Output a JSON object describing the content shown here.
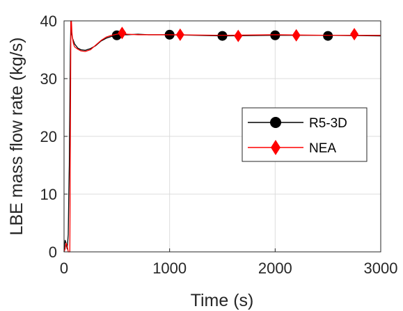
{
  "chart_data": {
    "type": "line",
    "title": "",
    "xlabel": "Time (s)",
    "ylabel": "LBE mass flow rate (kg/s)",
    "xlim": [
      0,
      3000
    ],
    "ylim": [
      0,
      40
    ],
    "xticks": [
      0,
      1000,
      2000,
      3000
    ],
    "yticks": [
      0,
      10,
      20,
      30,
      40
    ],
    "grid": true,
    "legend": "center-right",
    "series": [
      {
        "name": "R5-3D",
        "color": "#000000",
        "marker": "circle",
        "x": [
          0,
          5,
          10,
          20,
          30,
          40,
          45,
          50,
          55,
          60,
          65,
          70,
          80,
          100,
          130,
          160,
          200,
          250,
          300,
          350,
          400,
          450,
          500,
          550,
          600,
          700,
          800,
          1000,
          1500,
          2000,
          2500,
          3000
        ],
        "y": [
          0,
          1,
          2,
          1.5,
          0.5,
          3,
          10,
          15,
          25,
          35,
          40,
          38,
          37,
          36,
          35.3,
          35,
          34.9,
          35.2,
          35.7,
          36.5,
          37,
          37.3,
          37.4,
          37.6,
          37.6,
          37.7,
          37.6,
          37.6,
          37.4,
          37.5,
          37.5,
          37.4
        ],
        "markers_x": [
          500,
          1000,
          1500,
          2000,
          2500
        ],
        "markers_y": [
          37.5,
          37.6,
          37.4,
          37.5,
          37.4
        ]
      },
      {
        "name": "NEA",
        "color": "#ff0000",
        "marker": "diamond",
        "x": [
          0,
          10,
          20,
          30,
          40,
          50,
          55,
          60,
          65,
          70,
          75,
          80,
          90,
          100,
          130,
          160,
          200,
          250,
          300,
          350,
          400,
          450,
          500,
          550,
          600,
          700,
          800,
          1000,
          1500,
          2000,
          2500,
          3000
        ],
        "y": [
          0,
          0.5,
          1.5,
          1,
          0,
          0,
          0,
          20,
          40,
          40,
          38,
          37,
          36,
          35.5,
          35.1,
          34.8,
          34.7,
          35,
          35.8,
          36.6,
          37.2,
          37.5,
          37.7,
          37.8,
          37.7,
          37.6,
          37.6,
          37.6,
          37.5,
          37.6,
          37.5,
          37.5
        ],
        "markers_x": [
          550,
          1100,
          1650,
          2200,
          2750
        ],
        "markers_y": [
          37.9,
          37.6,
          37.4,
          37.5,
          37.7
        ]
      }
    ]
  }
}
